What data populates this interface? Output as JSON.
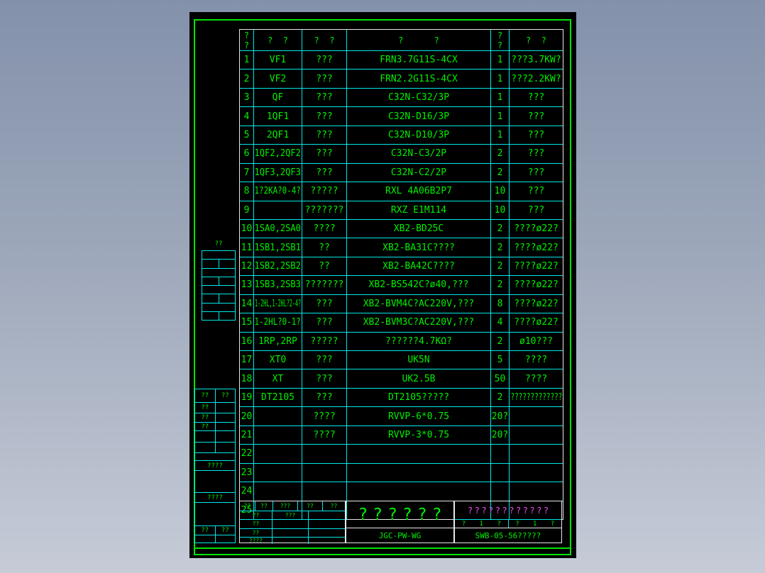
{
  "colors": {
    "frame_green": "#00e400",
    "text_green": "#00ef00",
    "grid_cyan": "#00e8e8",
    "white_line": "#e8e8e8",
    "magenta": "#f24bf2",
    "canvas_black": "#000000"
  },
  "table": {
    "headers": {
      "seq": [
        "?",
        "?"
      ],
      "symbol": "?  ?",
      "name": "?  ?",
      "model": "?      ?",
      "qty": [
        "?",
        "?"
      ],
      "remark": "?  ?"
    },
    "rows": [
      {
        "no": "1",
        "symbol": "VF1",
        "name": "???",
        "model": "FRN3.7G11S-4CX",
        "qty": "1",
        "remark": "???3.7KW?"
      },
      {
        "no": "2",
        "symbol": "VF2",
        "name": "???",
        "model": "FRN2.2G11S-4CX",
        "qty": "1",
        "remark": "???2.2KW?"
      },
      {
        "no": "3",
        "symbol": "QF",
        "name": "???",
        "model": "C32N-C32/3P",
        "qty": "1",
        "remark": "???"
      },
      {
        "no": "4",
        "symbol": "1QF1",
        "name": "???",
        "model": "C32N-D16/3P",
        "qty": "1",
        "remark": "???"
      },
      {
        "no": "5",
        "symbol": "2QF1",
        "name": "???",
        "model": "C32N-D10/3P",
        "qty": "1",
        "remark": "???"
      },
      {
        "no": "6",
        "symbol": "1QF2,2QF2",
        "name": "???",
        "model": "C32N-C3/2P",
        "qty": "2",
        "remark": "???"
      },
      {
        "no": "7",
        "symbol": "1QF3,2QF3",
        "name": "???",
        "model": "C32N-C2/2P",
        "qty": "2",
        "remark": "???"
      },
      {
        "no": "8",
        "symbol": "1?2KA?0-4?",
        "name": "?????",
        "model": "RXL 4A06B2P7",
        "qty": "10",
        "remark": "???"
      },
      {
        "no": "9",
        "symbol": "",
        "name": "???????",
        "model": "RXZ E1M114",
        "qty": "10",
        "remark": "???"
      },
      {
        "no": "10",
        "symbol": "1SA0,2SA0",
        "name": "????",
        "model": "XB2-BD25C",
        "qty": "2",
        "remark": "????ø22?"
      },
      {
        "no": "11",
        "symbol": "1SB1,2SB1",
        "name": "??",
        "model": "XB2-BA31C????",
        "qty": "2",
        "remark": "????ø22?"
      },
      {
        "no": "12",
        "symbol": "1SB2,2SB2",
        "name": "??",
        "model": "XB2-BA42C????",
        "qty": "2",
        "remark": "????ø22?"
      },
      {
        "no": "13",
        "symbol": "1SB3,2SB3",
        "name": "???????",
        "model": "XB2-BS542C?ø40,???",
        "qty": "2",
        "remark": "????ø22?"
      },
      {
        "no": "14",
        "symbol": "1-2HL,1-2HL?2-4?",
        "name": "???",
        "model": "XB2-BVM4C?AC220V,???",
        "qty": "8",
        "remark": "????ø22?"
      },
      {
        "no": "15",
        "symbol": "1-2HL?0-1?",
        "name": "???",
        "model": "XB2-BVM3C?AC220V,???",
        "qty": "4",
        "remark": "????ø22?"
      },
      {
        "no": "16",
        "symbol": "1RP,2RP",
        "name": "?????",
        "model": "??????4.7KΩ?",
        "qty": "2",
        "remark": "ø10???"
      },
      {
        "no": "17",
        "symbol": "XT0",
        "name": "???",
        "model": "UK5N",
        "qty": "5",
        "remark": "????"
      },
      {
        "no": "18",
        "symbol": "XT",
        "name": "???",
        "model": "UK2.5B",
        "qty": "50",
        "remark": "????"
      },
      {
        "no": "19",
        "symbol": "DT2105",
        "name": "???",
        "model": "DT2105?????",
        "qty": "2",
        "remark": "?????????????"
      },
      {
        "no": "20",
        "symbol": "",
        "name": "????",
        "model": "RVVP-6*0.75",
        "qty": "20?",
        "remark": ""
      },
      {
        "no": "21",
        "symbol": "",
        "name": "????",
        "model": "RVVP-3*0.75",
        "qty": "20?",
        "remark": ""
      },
      {
        "no": "22",
        "symbol": "",
        "name": "",
        "model": "",
        "qty": "",
        "remark": ""
      },
      {
        "no": "23",
        "symbol": "",
        "name": "",
        "model": "",
        "qty": "",
        "remark": ""
      },
      {
        "no": "24",
        "symbol": "",
        "name": "",
        "model": "",
        "qty": "",
        "remark": ""
      },
      {
        "no": "25",
        "symbol": "",
        "name": "",
        "model": "",
        "qty": "",
        "remark": ""
      }
    ]
  },
  "left_panel": {
    "top_label": "??",
    "sig_header": [
      "??",
      "??"
    ],
    "sig_rows": [
      "??",
      "??",
      "??"
    ],
    "label_a": "????",
    "label_b": "????",
    "bottom_cells": [
      "??",
      "??"
    ]
  },
  "title_block": {
    "grid_row1": [
      "??",
      "??",
      "???",
      "??",
      "??"
    ],
    "grid_rows": [
      [
        "??",
        "???",
        ""
      ],
      [
        "??",
        "",
        ""
      ],
      [
        "??",
        "",
        ""
      ],
      [
        "????",
        "",
        ""
      ]
    ],
    "title": "??????",
    "code": "JGC-PW-WG",
    "project": "????????????",
    "sheet_cells": [
      "?",
      "1",
      "?",
      "?",
      "1",
      "?"
    ],
    "doc_no": "SWB-05-56?????"
  }
}
